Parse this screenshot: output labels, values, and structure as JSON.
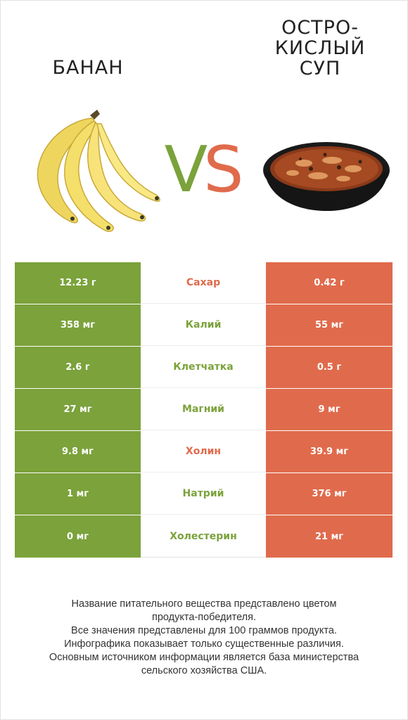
{
  "header": {
    "left_title": "БАНАН",
    "right_title_lines": [
      "ОСТРО-",
      "КИСЛЫЙ",
      "СУП"
    ],
    "vs_v": "V",
    "vs_s": "S"
  },
  "colors": {
    "left_winner": "#7ba23b",
    "right_winner": "#e06b4c"
  },
  "images": {
    "left": "banana-bunch",
    "right": "soup-bowl"
  },
  "rows": [
    {
      "left": "12.23 г",
      "nutrient": "Сахар",
      "right": "0.42 г",
      "winner": "right"
    },
    {
      "left": "358 мг",
      "nutrient": "Калий",
      "right": "55 мг",
      "winner": "left"
    },
    {
      "left": "2.6 г",
      "nutrient": "Клетчатка",
      "right": "0.5 г",
      "winner": "left"
    },
    {
      "left": "27 мг",
      "nutrient": "Магний",
      "right": "9 мг",
      "winner": "left"
    },
    {
      "left": "9.8 мг",
      "nutrient": "Холин",
      "right": "39.9 мг",
      "winner": "right"
    },
    {
      "left": "1 мг",
      "nutrient": "Натрий",
      "right": "376 мг",
      "winner": "left"
    },
    {
      "left": "0 мг",
      "nutrient": "Холестерин",
      "right": "21 мг",
      "winner": "left"
    }
  ],
  "footer": {
    "lines": [
      "Название питательного вещества представлено цветом",
      "продукта-победителя.",
      "Все значения представлены для 100 граммов продукта.",
      "Инфографика показывает только существенные различия.",
      "Основным источником информации является база министерства",
      "сельского хозяйства США."
    ]
  }
}
